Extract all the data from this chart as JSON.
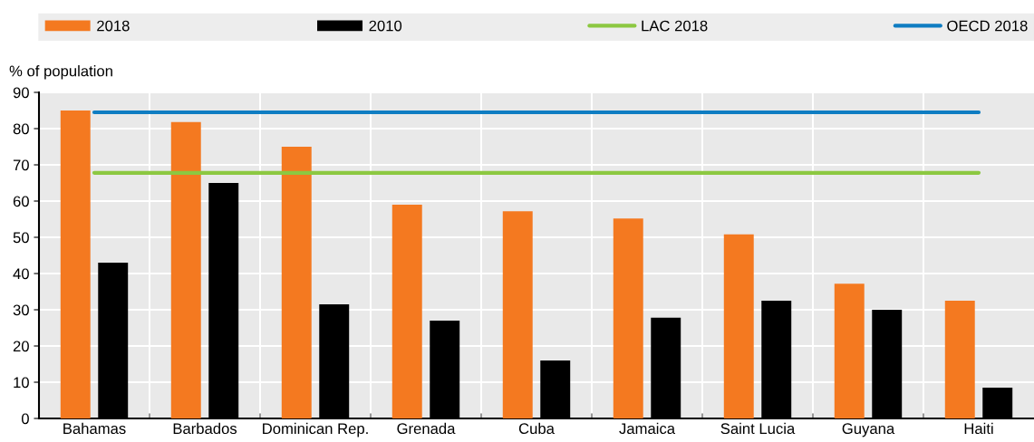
{
  "chart_data": {
    "type": "bar",
    "ylabel": "% of population",
    "categories": [
      "Bahamas",
      "Barbados",
      "Dominican Rep.",
      "Grenada",
      "Cuba",
      "Jamaica",
      "Saint Lucia",
      "Guyana",
      "Haiti"
    ],
    "series": [
      {
        "name": "2018",
        "color": "#f47920",
        "values": [
          85,
          81.8,
          75,
          59,
          57.2,
          55.2,
          50.8,
          37.2,
          32.5
        ]
      },
      {
        "name": "2010",
        "color": "#000000",
        "values": [
          43,
          65,
          31.5,
          27,
          16,
          27.8,
          32.5,
          30,
          8.5
        ]
      },
      {
        "name": "LAC 2018",
        "type": "line",
        "color": "#8cc841",
        "values": [
          67.8,
          67.8,
          67.8,
          67.8,
          67.8,
          67.8,
          67.8,
          67.8,
          67.8
        ]
      },
      {
        "name": "OECD 2018",
        "type": "line",
        "color": "#0f7dc2",
        "values": [
          84.5,
          84.5,
          84.5,
          84.5,
          84.5,
          84.5,
          84.5,
          84.5,
          84.5
        ]
      }
    ],
    "ylim": [
      0,
      90
    ],
    "yticks": [
      0,
      10,
      20,
      30,
      40,
      50,
      60,
      70,
      80,
      90
    ],
    "grid": true,
    "legend": "top",
    "marker": "none"
  }
}
